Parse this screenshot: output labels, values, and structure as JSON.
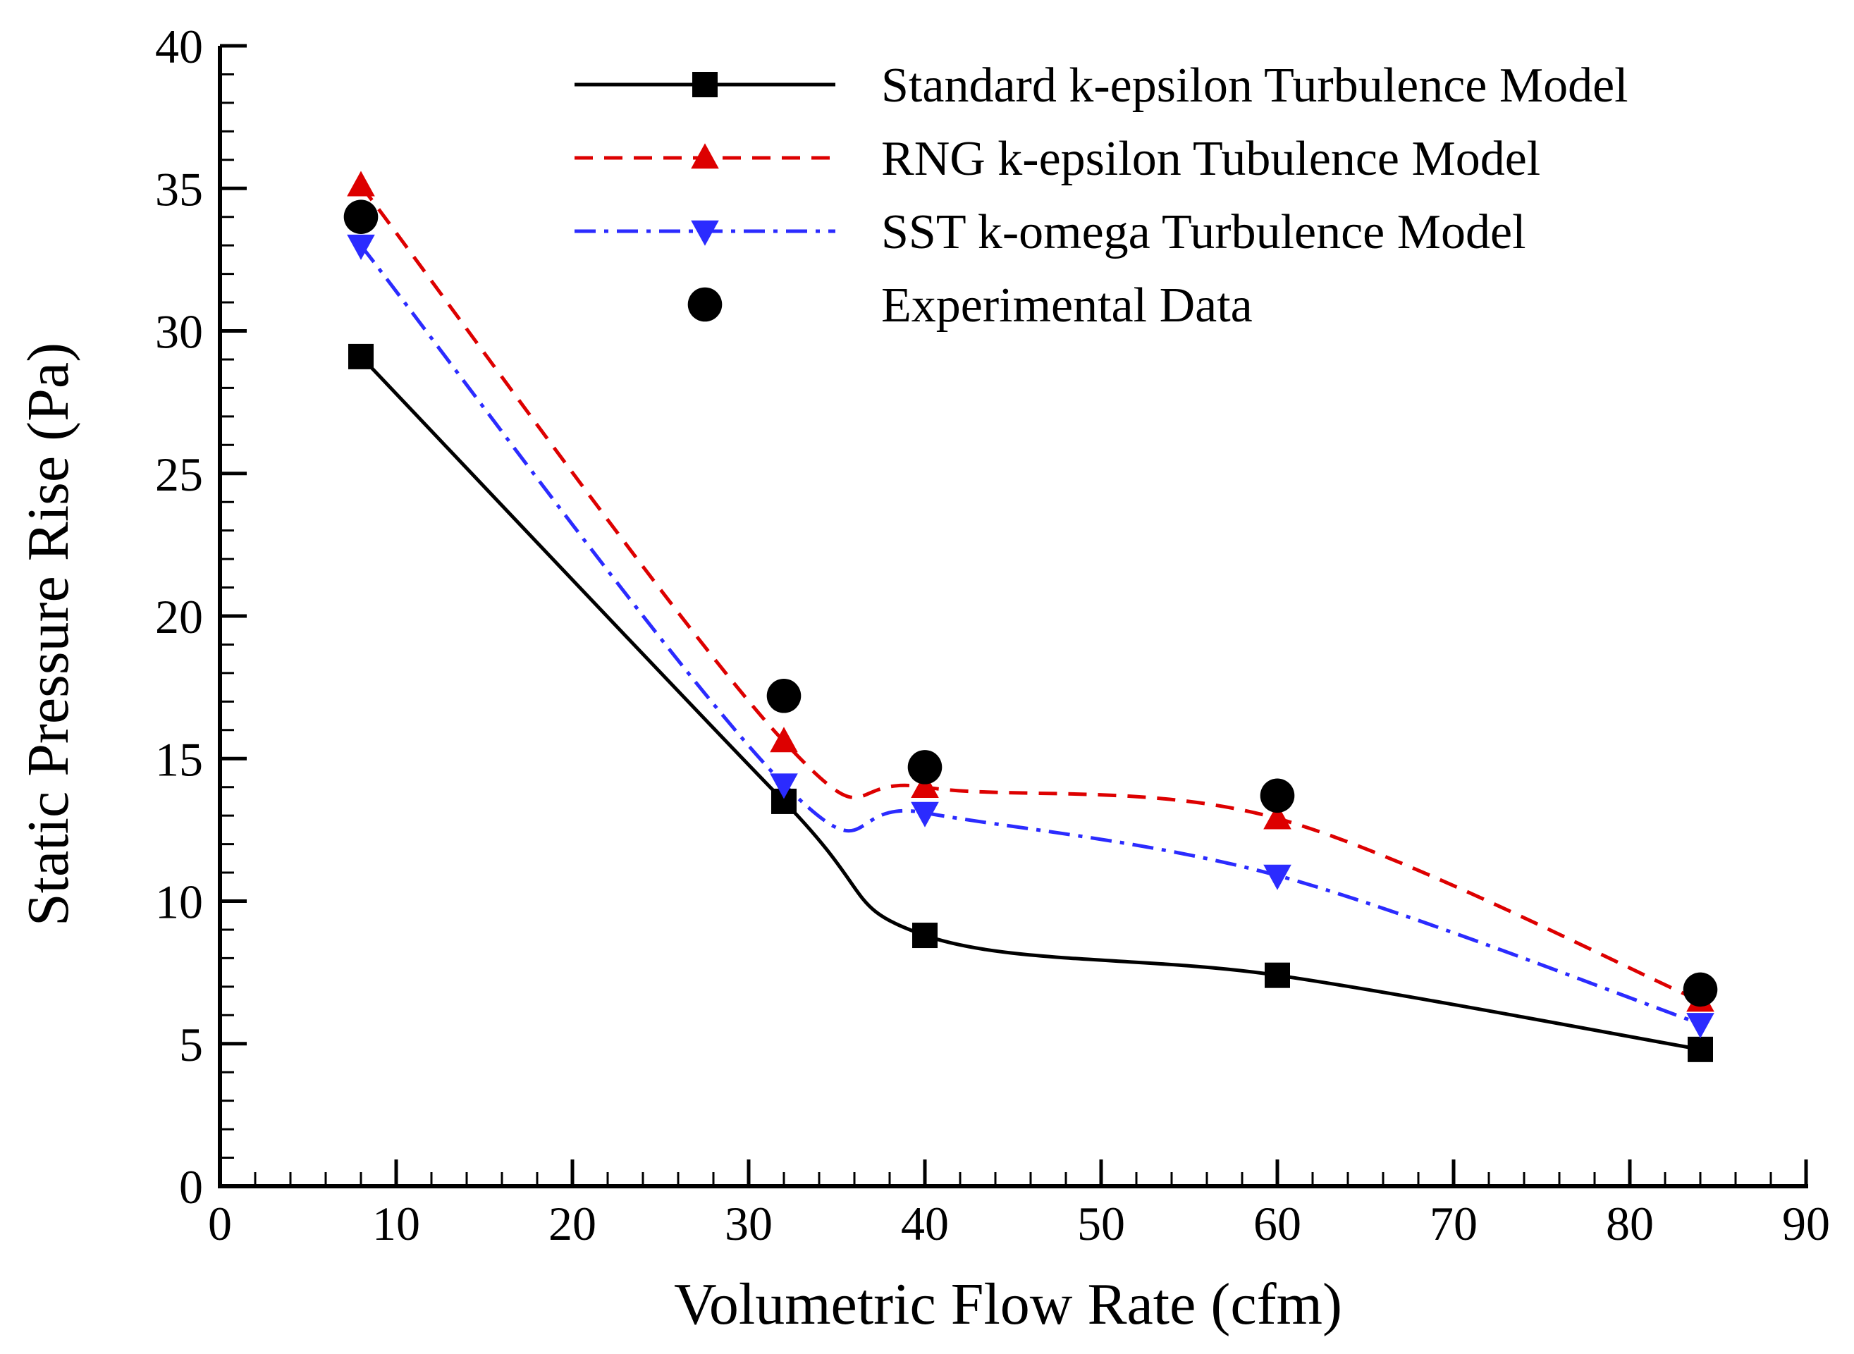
{
  "chart_data": {
    "type": "line",
    "title": "",
    "xlabel": "Volumetric Flow Rate (cfm)",
    "ylabel": "Static Pressure Rise (Pa)",
    "xlim": [
      0,
      90
    ],
    "ylim": [
      0,
      40
    ],
    "x_ticks": [
      "0",
      "10",
      "20",
      "30",
      "40",
      "50",
      "60",
      "70",
      "80",
      "90"
    ],
    "y_ticks": [
      "0",
      "5",
      "10",
      "15",
      "20",
      "25",
      "30",
      "35",
      "40"
    ],
    "grid": false,
    "legend_position": "top-right",
    "series": [
      {
        "name": "Standard k-epsilon Turbulence Model",
        "color": "#000000",
        "line_style": "solid",
        "marker": "square",
        "x": [
          8,
          32,
          40,
          60,
          84
        ],
        "y": [
          29.1,
          13.5,
          8.8,
          7.4,
          4.8
        ]
      },
      {
        "name": "RNG k-epsilon Tubulence Model",
        "color": "#dd0000",
        "line_style": "dashed",
        "marker": "triangle-up",
        "x": [
          8,
          32,
          40,
          60,
          84
        ],
        "y": [
          35.1,
          15.6,
          14.0,
          12.9,
          6.5
        ]
      },
      {
        "name": "SST k-omega Turbulence Model",
        "color": "#2b2bff",
        "line_style": "dash-dot",
        "marker": "triangle-down",
        "x": [
          8,
          32,
          40,
          60,
          84
        ],
        "y": [
          33.0,
          14.1,
          13.1,
          10.9,
          5.7
        ]
      },
      {
        "name": "Experimental Data",
        "color": "#000000",
        "line_style": "none",
        "marker": "circle",
        "x": [
          8,
          32,
          40,
          60,
          84
        ],
        "y": [
          34.0,
          17.2,
          14.7,
          13.7,
          6.9
        ]
      }
    ]
  }
}
